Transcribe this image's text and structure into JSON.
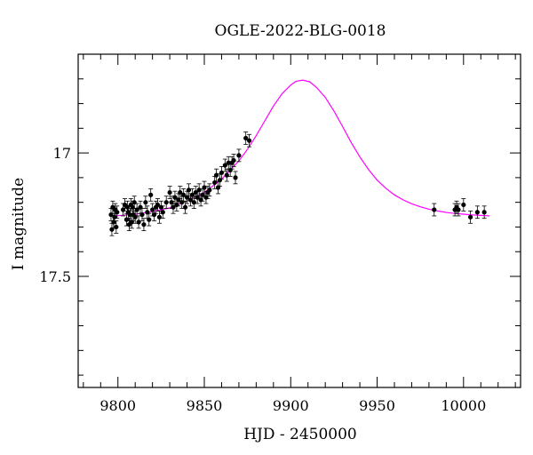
{
  "chart_data": {
    "type": "scatter",
    "title": "OGLE-2022-BLG-0018",
    "xlabel": "HJD - 2450000",
    "ylabel": "I magnitude",
    "xlim": [
      9777,
      10033
    ],
    "ylim": [
      17.95,
      16.6
    ],
    "y_inverted": true,
    "x_ticks": [
      9800,
      9850,
      9900,
      9950,
      10000
    ],
    "y_ticks": [
      17,
      17.5
    ],
    "colors": {
      "data": "#000000",
      "model": "#ff00ff"
    },
    "series": [
      {
        "type": "line",
        "x": [
          9795,
          9800,
          9810,
          9820,
          9830,
          9840,
          9850,
          9860,
          9870,
          9875,
          9880,
          9885,
          9890,
          9895,
          9900,
          9903,
          9907,
          9911,
          9915,
          9920,
          9925,
          9930,
          9935,
          9940,
          9945,
          9950,
          9955,
          9960,
          9965,
          9970,
          9975,
          9980,
          9985,
          9990,
          9995,
          10000,
          10005,
          10010,
          10015
        ],
        "y": [
          17.255,
          17.254,
          17.248,
          17.238,
          17.222,
          17.195,
          17.16,
          17.106,
          17.032,
          16.985,
          16.93,
          16.87,
          16.81,
          16.76,
          16.725,
          16.71,
          16.705,
          16.712,
          16.735,
          16.775,
          16.83,
          16.893,
          16.958,
          17.016,
          17.067,
          17.11,
          17.143,
          17.17,
          17.19,
          17.206,
          17.218,
          17.228,
          17.235,
          17.241,
          17.245,
          17.248,
          17.251,
          17.253,
          17.255
        ]
      },
      {
        "type": "points",
        "x": [
          9796,
          9796.5,
          9797,
          9797.5,
          9798,
          9798.5,
          9799,
          9799.5,
          9803,
          9804,
          9805,
          9805.5,
          9806,
          9806.5,
          9807,
          9807.5,
          9808,
          9808.5,
          9809,
          9809.5,
          9810,
          9811,
          9812,
          9813,
          9814,
          9815,
          9816,
          9817,
          9818,
          9819,
          9820,
          9821,
          9822,
          9823,
          9824,
          9825,
          9826,
          9828,
          9830,
          9831,
          9832,
          9833,
          9834,
          9835,
          9836,
          9837,
          9838,
          9839,
          9840,
          9841,
          9842,
          9843,
          9844,
          9845,
          9846,
          9847,
          9848,
          9849,
          9850,
          9851,
          9852,
          9853,
          9856,
          9857,
          9858,
          9859,
          9860,
          9862,
          9863,
          9864,
          9865,
          9866,
          9867,
          9868,
          9870,
          9874,
          9876,
          9983,
          9995,
          9996,
          9997,
          10000,
          10004,
          10008,
          10012
        ],
        "y": [
          17.25,
          17.31,
          17.22,
          17.28,
          17.26,
          17.23,
          17.3,
          17.24,
          17.23,
          17.21,
          17.27,
          17.22,
          17.24,
          17.29,
          17.25,
          17.21,
          17.28,
          17.22,
          17.25,
          17.2,
          17.26,
          17.23,
          17.28,
          17.22,
          17.25,
          17.29,
          17.2,
          17.24,
          17.27,
          17.17,
          17.23,
          17.25,
          17.22,
          17.21,
          17.26,
          17.22,
          17.24,
          17.2,
          17.16,
          17.2,
          17.22,
          17.18,
          17.21,
          17.19,
          17.16,
          17.2,
          17.17,
          17.22,
          17.18,
          17.15,
          17.19,
          17.17,
          17.2,
          17.16,
          17.18,
          17.15,
          17.19,
          17.17,
          17.14,
          17.18,
          17.16,
          17.15,
          17.12,
          17.09,
          17.14,
          17.11,
          17.08,
          17.05,
          17.09,
          17.04,
          17.07,
          17.04,
          17.03,
          17.1,
          17.01,
          16.94,
          16.95,
          17.23,
          17.23,
          17.22,
          17.23,
          17.21,
          17.26,
          17.24,
          17.24
        ],
        "err": 0.025
      }
    ]
  }
}
